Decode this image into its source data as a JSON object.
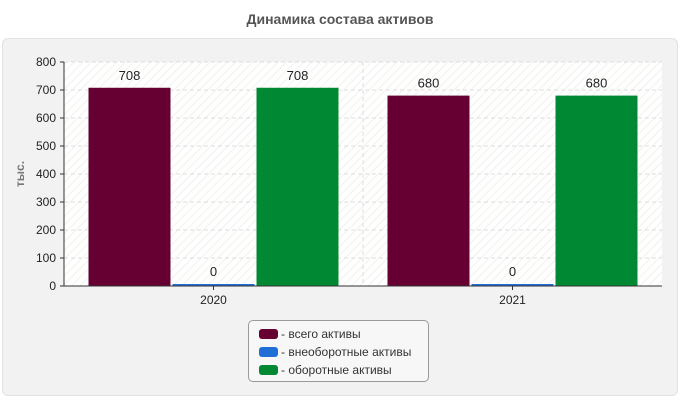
{
  "chart_data": {
    "type": "bar",
    "title": "Динамика состава активов",
    "ylabel": "тыс.",
    "xlabel": "",
    "categories": [
      "2020",
      "2021"
    ],
    "ylim": [
      0,
      800
    ],
    "yticks": [
      0,
      100,
      200,
      300,
      400,
      500,
      600,
      700,
      800
    ],
    "grid": true,
    "legend_position": "bottom",
    "series": [
      {
        "name": "- всего активы",
        "values": [
          708,
          680
        ],
        "color": "#660033"
      },
      {
        "name": "- внеоборотные активы",
        "values": [
          0,
          0
        ],
        "color": "#1f6fd6"
      },
      {
        "name": "- оборотные активы",
        "values": [
          708,
          680
        ],
        "color": "#008833"
      }
    ]
  }
}
